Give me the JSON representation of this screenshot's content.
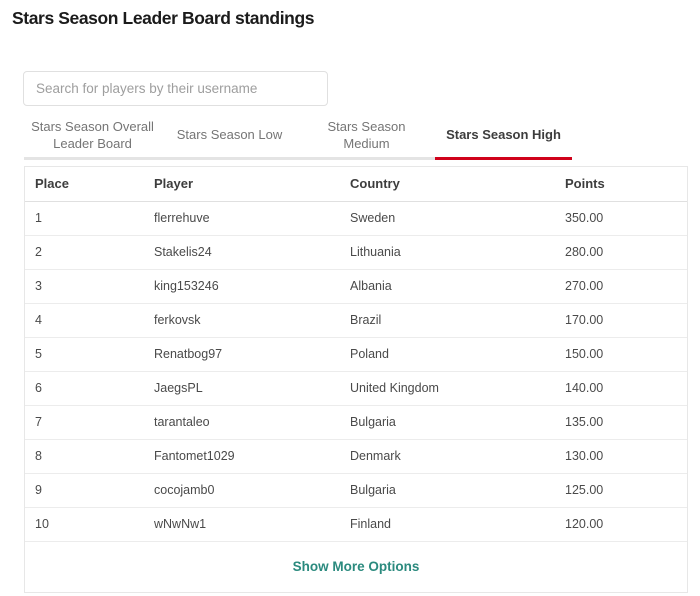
{
  "page": {
    "title": "Stars Season Leader Board standings"
  },
  "search": {
    "placeholder": "Search for players by their username",
    "value": ""
  },
  "tabs": [
    {
      "label": "Stars Season Overall Leader Board",
      "active": false
    },
    {
      "label": "Stars Season Low",
      "active": false
    },
    {
      "label": "Stars Season Medium",
      "active": false
    },
    {
      "label": "Stars Season High",
      "active": true
    }
  ],
  "table": {
    "columns": [
      "Place",
      "Player",
      "Country",
      "Points"
    ],
    "rows": [
      {
        "place": "1",
        "player": "flerrehuve",
        "country": "Sweden",
        "points": "350.00"
      },
      {
        "place": "2",
        "player": "Stakelis24",
        "country": "Lithuania",
        "points": "280.00"
      },
      {
        "place": "3",
        "player": "king153246",
        "country": "Albania",
        "points": "270.00"
      },
      {
        "place": "4",
        "player": "ferkovsk",
        "country": "Brazil",
        "points": "170.00"
      },
      {
        "place": "5",
        "player": "Renatbog97",
        "country": "Poland",
        "points": "150.00"
      },
      {
        "place": "6",
        "player": "JaegsPL",
        "country": "United Kingdom",
        "points": "140.00"
      },
      {
        "place": "7",
        "player": "tarantaleo",
        "country": "Bulgaria",
        "points": "135.00"
      },
      {
        "place": "8",
        "player": "Fantomet1029",
        "country": "Denmark",
        "points": "130.00"
      },
      {
        "place": "9",
        "player": "cocojamb0",
        "country": "Bulgaria",
        "points": "125.00"
      },
      {
        "place": "10",
        "player": "wNwNw1",
        "country": "Finland",
        "points": "120.00"
      }
    ]
  },
  "footer": {
    "show_more_label": "Show More Options"
  },
  "colors": {
    "accent_red": "#d0021b",
    "link_teal": "#2b8a7e"
  }
}
